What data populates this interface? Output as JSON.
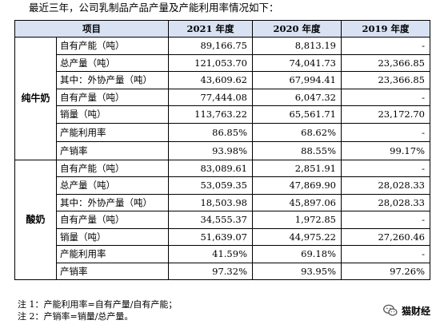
{
  "intro": "最近三年，公司乳制品产品产量及产能利用率情况如下：",
  "headers": [
    "项目",
    "2021 年度",
    "2020 年度",
    "2019 年度"
  ],
  "groups": [
    {
      "name": "纯牛奶",
      "rows": [
        {
          "label": "自有产能（吨）",
          "v2021": "89,166.75",
          "v2020": "8,813.19",
          "v2019": "-"
        },
        {
          "label": "总产量（吨）",
          "v2021": "121,053.70",
          "v2020": "74,041.73",
          "v2019": "23,366.85"
        },
        {
          "label": "其中：外协产量（吨）",
          "v2021": "43,609.62",
          "v2020": "67,994.41",
          "v2019": "23,366.85"
        },
        {
          "label": "自有产量（吨）",
          "v2021": "77,444.08",
          "v2020": "6,047.32",
          "v2019": "-"
        },
        {
          "label": "销量（吨）",
          "v2021": "113,763.22",
          "v2020": "65,561.71",
          "v2019": "23,172.70"
        },
        {
          "label": "产能利用率",
          "v2021": "86.85%",
          "v2020": "68.62%",
          "v2019": "-"
        },
        {
          "label": "产销率",
          "v2021": "93.98%",
          "v2020": "88.55%",
          "v2019": "99.17%"
        }
      ]
    },
    {
      "name": "酸奶",
      "rows": [
        {
          "label": "自有产能（吨）",
          "v2021": "83,089.61",
          "v2020": "2,851.91",
          "v2019": "-"
        },
        {
          "label": "总产量（吨）",
          "v2021": "53,059.35",
          "v2020": "47,869.90",
          "v2019": "28,028.33"
        },
        {
          "label": "其中：外协产量（吨）",
          "v2021": "18,503.98",
          "v2020": "45,897.06",
          "v2019": "28,028.33"
        },
        {
          "label": "自有产量（吨）",
          "v2021": "34,555.37",
          "v2020": "1,972.85",
          "v2019": "-"
        },
        {
          "label": "销量（吨）",
          "v2021": "51,639.07",
          "v2020": "44,975.22",
          "v2019": "27,260.46"
        },
        {
          "label": "产能利用率",
          "v2021": "41.59%",
          "v2020": "69.18%",
          "v2019": "-"
        },
        {
          "label": "产销率",
          "v2021": "97.32%",
          "v2020": "93.95%",
          "v2019": "97.26%"
        }
      ]
    }
  ],
  "notes": [
    "注 1：产能利用率=自有产量/自有产能；",
    "注 2：产销率=销量/总产量。"
  ],
  "watermark": {
    "icon": "wechat-icon",
    "text": "猫财经"
  }
}
